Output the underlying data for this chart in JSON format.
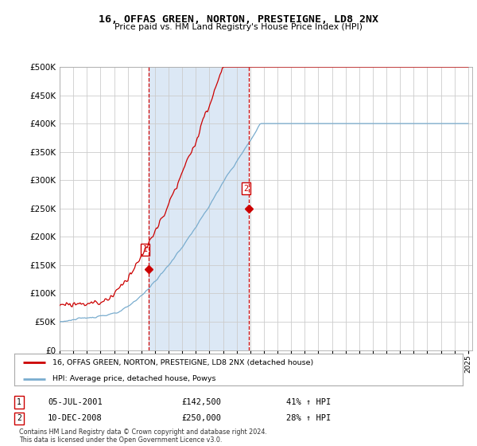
{
  "title": "16, OFFAS GREEN, NORTON, PRESTEIGNE, LD8 2NX",
  "subtitle": "Price paid vs. HM Land Registry's House Price Index (HPI)",
  "red_label": "16, OFFAS GREEN, NORTON, PRESTEIGNE, LD8 2NX (detached house)",
  "blue_label": "HPI: Average price, detached house, Powys",
  "annotation1_date": "05-JUL-2001",
  "annotation1_price": "£142,500",
  "annotation1_hpi": "41% ↑ HPI",
  "annotation2_date": "10-DEC-2008",
  "annotation2_price": "£250,000",
  "annotation2_hpi": "28% ↑ HPI",
  "footnote": "Contains HM Land Registry data © Crown copyright and database right 2024.\nThis data is licensed under the Open Government Licence v3.0.",
  "ylim": [
    0,
    500000
  ],
  "yticks": [
    0,
    50000,
    100000,
    150000,
    200000,
    250000,
    300000,
    350000,
    400000,
    450000,
    500000
  ],
  "fig_bg": "#ffffff",
  "plot_bg": "#ffffff",
  "shade_bg": "#dce8f5",
  "red_color": "#cc0000",
  "blue_color": "#7aadcf",
  "vline_color": "#cc0000",
  "grid_color": "#cccccc",
  "sale1_t": 2001.54,
  "sale1_price": 142500,
  "sale2_t": 2008.92,
  "sale2_price": 250000
}
